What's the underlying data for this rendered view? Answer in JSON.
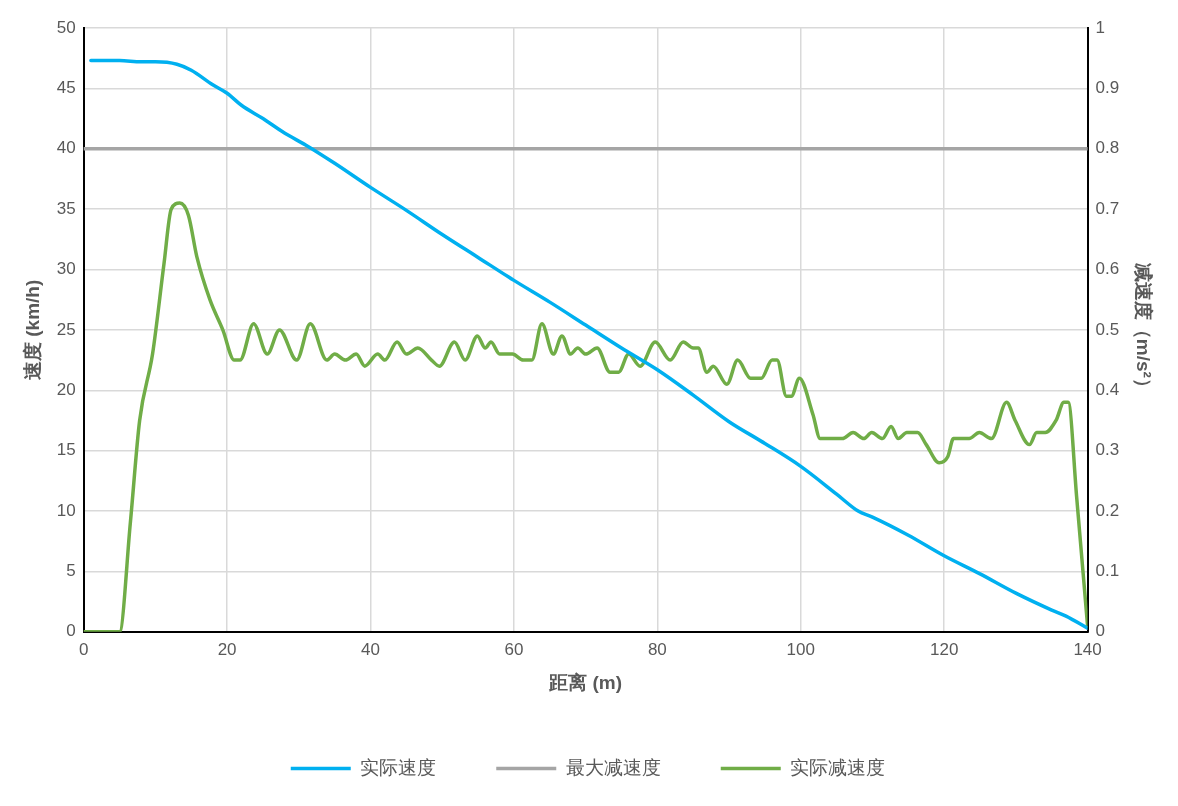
{
  "chart_data": {
    "type": "line",
    "xlabel": "距离 (m)",
    "ylabel": "速度 (km/h)",
    "y2label": "减速度（m/s²）",
    "xlim": [
      0,
      140
    ],
    "xticks": [
      0,
      20,
      40,
      60,
      80,
      100,
      120,
      140
    ],
    "ylim": [
      0,
      50
    ],
    "yticks": [
      0,
      5,
      10,
      15,
      20,
      25,
      30,
      35,
      40,
      45,
      50
    ],
    "y2lim": [
      0,
      1
    ],
    "y2ticks": [
      0,
      0.1,
      0.2,
      0.3,
      0.4,
      0.5,
      0.6,
      0.7,
      0.8,
      0.9,
      1
    ],
    "grid": true,
    "legend": "bottom",
    "marker": "none",
    "line_style": "solid",
    "series": [
      {
        "name": "实际速度",
        "color": "#00b0f0",
        "axis": "y",
        "x": [
          1,
          5,
          8,
          10,
          13,
          15,
          18,
          20,
          22,
          25,
          28,
          31,
          35,
          40,
          45,
          50,
          55,
          60,
          65,
          70,
          75,
          80,
          85,
          90,
          95,
          100,
          105,
          108,
          110,
          115,
          120,
          125,
          130,
          135,
          137,
          140
        ],
        "values": [
          47.3,
          47.3,
          47.2,
          47.2,
          47,
          46.5,
          45.3,
          44.6,
          43.6,
          42.5,
          41.3,
          40.3,
          38.8,
          36.8,
          34.9,
          32.9,
          31,
          29.1,
          27.3,
          25.4,
          23.5,
          21.7,
          19.6,
          17.4,
          15.6,
          13.7,
          11.4,
          10,
          9.5,
          8,
          6.3,
          4.8,
          3.2,
          1.8,
          1.3,
          0.3
        ]
      },
      {
        "name": "最大减速度",
        "color": "#a5a5a5",
        "axis": "y2",
        "x": [
          0,
          140
        ],
        "values": [
          0.8,
          0.8
        ]
      },
      {
        "name": "实际减速度",
        "color": "#70ad47",
        "axis": "y2",
        "x": [
          0,
          5,
          6.5,
          7.8,
          9.6,
          11.2,
          12.2,
          13.4,
          14.6,
          15.8,
          17.6,
          19.4,
          21,
          21.8,
          23.7,
          25.6,
          27.3,
          29.7,
          31.6,
          33.9,
          35,
          36.5,
          38,
          39.2,
          41,
          42,
          43.7,
          45,
          46.6,
          48.5,
          49.6,
          51.7,
          53.2,
          54.9,
          56,
          56.8,
          58,
          59.8,
          61.3,
          62.5,
          63.9,
          65.5,
          66.7,
          67.9,
          68.9,
          70,
          71.6,
          73.4,
          74.6,
          76,
          77.6,
          79.7,
          81.8,
          83.6,
          85,
          85.7,
          86.9,
          87.8,
          89.7,
          91.2,
          93,
          94.5,
          96,
          96.7,
          98,
          98.7,
          99.8,
          101.7,
          102.7,
          104.3,
          105.8,
          107.3,
          108.8,
          109.9,
          111.4,
          112.6,
          113.6,
          114.8,
          116.3,
          117.5,
          119.3,
          120.5,
          121.3,
          123.5,
          124.9,
          126.6,
          128.7,
          129.9,
          131.9,
          132.9,
          134.1,
          135.6,
          136.7,
          137.3,
          138.5,
          140
        ],
        "values": [
          0,
          0,
          0.18,
          0.35,
          0.46,
          0.61,
          0.7,
          0.71,
          0.69,
          0.62,
          0.55,
          0.5,
          0.45,
          0.45,
          0.51,
          0.46,
          0.5,
          0.45,
          0.51,
          0.45,
          0.46,
          0.45,
          0.46,
          0.44,
          0.46,
          0.45,
          0.48,
          0.46,
          0.47,
          0.45,
          0.44,
          0.48,
          0.45,
          0.49,
          0.47,
          0.48,
          0.46,
          0.46,
          0.45,
          0.45,
          0.51,
          0.46,
          0.49,
          0.46,
          0.47,
          0.46,
          0.47,
          0.43,
          0.43,
          0.46,
          0.44,
          0.48,
          0.45,
          0.48,
          0.47,
          0.47,
          0.43,
          0.44,
          0.41,
          0.45,
          0.42,
          0.42,
          0.45,
          0.45,
          0.39,
          0.39,
          0.42,
          0.36,
          0.32,
          0.32,
          0.32,
          0.33,
          0.32,
          0.33,
          0.32,
          0.34,
          0.32,
          0.33,
          0.33,
          0.31,
          0.28,
          0.29,
          0.32,
          0.32,
          0.33,
          0.32,
          0.38,
          0.35,
          0.31,
          0.33,
          0.33,
          0.35,
          0.38,
          0.38,
          0.22,
          0.01
        ]
      }
    ]
  }
}
